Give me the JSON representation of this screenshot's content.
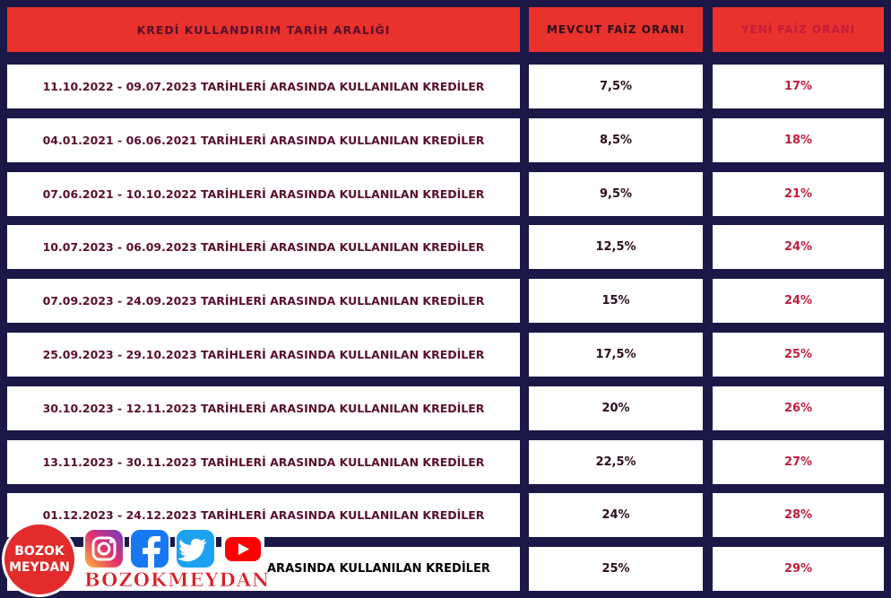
{
  "header": [
    "KREDİ KULLANDIRIM TARİH ARALIĞI",
    "MEVCUT FAİZ ORANI",
    "YENİ FAİZ ORANI"
  ],
  "rows": [
    [
      "11.10.2022 - 09.07.2023 TARİHLERİ ARASINDA KULLANILAN KREDİLER",
      "7,5%",
      "17%"
    ],
    [
      "04.01.2021 - 06.06.2021 TARİHLERİ ARASINDA KULLANILAN KREDİLER",
      "8,5%",
      "18%"
    ],
    [
      "07.06.2021 - 10.10.2022 TARİHLERİ ARASINDA KULLANILAN KREDİLER",
      "9,5%",
      "21%"
    ],
    [
      "10.07.2023 - 06.09.2023 TARİHLERİ ARASINDA KULLANILAN KREDİLER",
      "12,5%",
      "24%"
    ],
    [
      "07.09.2023 - 24.09.2023 TARİHLERİ ARASINDA KULLANILAN KREDİLER",
      "15%",
      "24%"
    ],
    [
      "25.09.2023 - 29.10.2023 TARİHLERİ ARASINDA KULLANILAN KREDİLER",
      "17,5%",
      "25%"
    ],
    [
      "30.10.2023 - 12.11.2023 TARİHLERİ ARASINDA KULLANILAN KREDİLER",
      "20%",
      "26%"
    ],
    [
      "13.11.2023 - 30.11.2023 TARİHLERİ ARASINDA KULLANILAN KREDİLER",
      "22,5%",
      "27%"
    ],
    [
      "01.12.2023 - 24.12.2023 TARİHLERİ ARASINDA KULLANILAN KREDİLER",
      "24%",
      "28%"
    ],
    [
      "ARASINDA KULLANILAN KREDİLER",
      "25%",
      "29%"
    ]
  ],
  "logo": {
    "line1": "BOZOK",
    "line2": "MEYDAN",
    "wordmark": "BOZOKMEYDAN"
  }
}
